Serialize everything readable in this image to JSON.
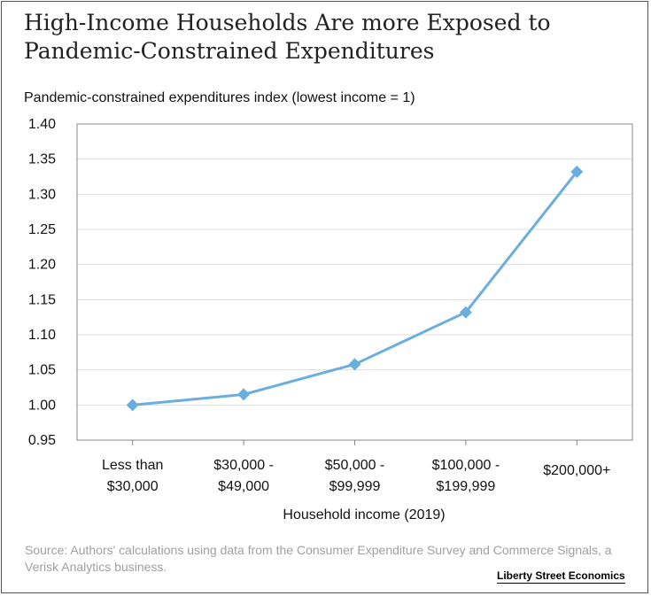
{
  "header": {
    "title_line1": "High-Income Households Are more Exposed to",
    "title_line2": "Pandemic-Constrained Expenditures"
  },
  "footer": {
    "source": "Source:  Authors' calculations using data from the Consumer Expenditure Survey and Commerce Signals, a Verisk Analytics business.",
    "brand": "Liberty Street Economics"
  },
  "colors": {
    "series": "#6aaee0",
    "grid": "#dddddd",
    "axis": "#888888"
  },
  "chart_data": {
    "type": "line",
    "title": "High-Income Households Are more Exposed to Pandemic-Constrained Expenditures",
    "ylabel": "Pandemic-constrained expenditures index (lowest income = 1)",
    "xlabel": "Household income (2019)",
    "categories": [
      [
        "Less than",
        "$30,000"
      ],
      [
        "$30,000 -",
        "$49,000"
      ],
      [
        "$50,000 -",
        "$99,999"
      ],
      [
        "$100,000 -",
        "$199,999"
      ],
      [
        "$200,000+"
      ]
    ],
    "values": [
      1.0,
      1.015,
      1.058,
      1.132,
      1.332
    ],
    "ylim": [
      0.95,
      1.4
    ],
    "yticks": [
      "0.95",
      "1.00",
      "1.05",
      "1.10",
      "1.15",
      "1.20",
      "1.25",
      "1.30",
      "1.35",
      "1.40"
    ],
    "grid": true,
    "marker": "diamond"
  }
}
